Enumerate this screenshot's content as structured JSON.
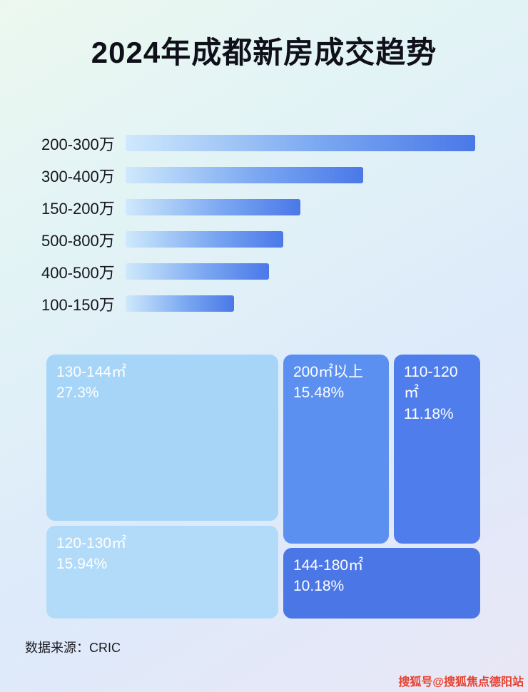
{
  "page": {
    "title": "2024年成都新房成交趋势",
    "source_label": "数据来源：CRIC",
    "watermark": "搜狐号@搜狐焦点德阳站",
    "colors": {
      "bar_gradient_start": "#cfe9fc",
      "bar_gradient_end": "#4a78e8",
      "watermark_red": "#e8402e",
      "title_text": "#10101a"
    }
  },
  "chart_data": [
    {
      "type": "bar",
      "orientation": "horizontal",
      "title": "2024年成都新房成交趋势",
      "categories": [
        "200-300万",
        "300-400万",
        "150-200万",
        "500-800万",
        "400-500万",
        "100-150万"
      ],
      "values": [
        100,
        68,
        50,
        45,
        41,
        31
      ],
      "value_note": "bars carry no numeric labels; values are relative lengths as % of the longest bar",
      "xlabel": "",
      "ylabel": "",
      "grid": false,
      "legend": false
    },
    {
      "type": "treemap",
      "items": [
        {
          "label": "130-144㎡",
          "pct_label": "27.3%",
          "value": 27.3,
          "color": "#a6d5f8"
        },
        {
          "label": "120-130㎡",
          "pct_label": "15.94%",
          "value": 15.94,
          "color": "#b2dbf9"
        },
        {
          "label": "200㎡以上",
          "pct_label": "15.48%",
          "value": 15.48,
          "color": "#5c90f0"
        },
        {
          "label": "110-120㎡",
          "pct_label": "11.18%",
          "value": 11.18,
          "color": "#4f7eec"
        },
        {
          "label": "144-180㎡",
          "pct_label": "10.18%",
          "value": 10.18,
          "color": "#4b76e6"
        }
      ]
    }
  ]
}
